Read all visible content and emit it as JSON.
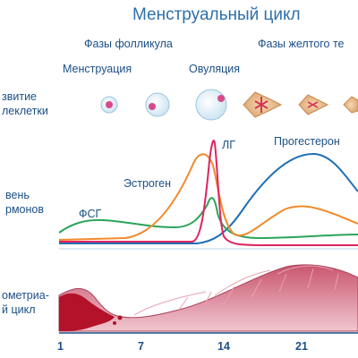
{
  "title": "Менструальный цикл",
  "phases": {
    "follicular": "Фазы фолликула",
    "luteal": "Фазы желтого те"
  },
  "stages": {
    "menstruation": "Менструация",
    "ovulation": "Овуляция"
  },
  "row_labels": {
    "cell_development": [
      "звитие",
      "леклетки"
    ],
    "hormone_level": [
      "вень",
      "рмонов"
    ],
    "endometrial_cycle": [
      "ометриа-",
      "й цикл"
    ]
  },
  "hormones": {
    "fsh": "ФСГ",
    "estrogen": "Эстроген",
    "lh": "ЛГ",
    "progesterone": "Прогестерон"
  },
  "colors": {
    "fsh": "#2aa55a",
    "estrogen": "#f08a2c",
    "lh": "#e0245e",
    "progesterone": "#1f6fb5",
    "endometrium": "#c25068",
    "menstrual_blood": "#b3122a"
  },
  "x_ticks": [
    "1",
    "7",
    "14",
    "21"
  ]
}
